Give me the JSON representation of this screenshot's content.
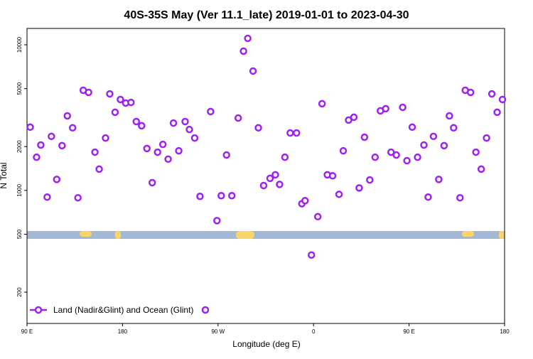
{
  "chart_data": {
    "type": "scatter",
    "title": "40S-35S May (Ver 11.1_late)   2019-01-01 to 2023-04-30",
    "xlabel": "Longitude (deg E)",
    "ylabel": "N Total",
    "xlim": [
      90,
      540
    ],
    "xticks": [
      {
        "value": 90,
        "label": "90 E"
      },
      180,
      {
        "value": 270,
        "label": "90 W"
      },
      {
        "value": 360,
        "label": "0"
      },
      {
        "value": 450,
        "label": "90 E"
      },
      {
        "value": 540,
        "label": "180"
      }
    ],
    "ylim": [
      122,
      12950
    ],
    "log_y": true,
    "yticks": [
      200,
      500,
      1000,
      2000,
      5000,
      10000
    ],
    "legend": "bottom-left",
    "series": [
      {
        "name": "Land (Nadir&Glint) and Ocean (Glint)",
        "color": "#a020f0",
        "x": [
          93,
          99,
          103,
          109,
          113,
          118,
          123,
          128,
          133,
          138,
          143,
          148,
          154,
          158,
          164,
          168,
          173,
          178,
          183,
          188,
          193,
          198,
          203,
          208,
          213,
          218,
          223,
          228,
          233,
          239,
          243,
          248,
          253,
          263,
          269,
          273,
          278,
          283,
          289,
          294,
          298,
          303,
          308,
          313,
          319,
          324,
          328,
          333,
          338,
          344,
          349,
          352,
          358,
          364,
          368,
          373,
          378,
          384,
          388,
          393,
          398,
          403,
          408,
          413,
          418,
          423,
          428,
          433,
          438,
          444,
          448,
          453,
          458,
          464,
          468,
          473,
          478,
          483,
          488,
          492,
          498,
          503,
          508,
          513,
          518,
          523,
          528,
          533,
          538
        ],
        "values": [
          2720,
          1690,
          2050,
          900,
          2350,
          1190,
          2030,
          3250,
          2690,
          890,
          4870,
          4710,
          1830,
          1400,
          2290,
          4600,
          3440,
          4210,
          3980,
          4020,
          2970,
          2780,
          1940,
          1130,
          1830,
          2070,
          1640,
          2900,
          1870,
          2970,
          2620,
          2290,
          910,
          3480,
          620,
          920,
          1750,
          920,
          3140,
          9040,
          11070,
          6600,
          2690,
          1080,
          1210,
          1280,
          1100,
          1690,
          2480,
          2480,
          810,
          850,
          360,
          660,
          3940,
          1280,
          1260,
          940,
          1870,
          3040,
          3180,
          1040,
          2320,
          1180,
          1690,
          3520,
          3640,
          1830,
          1750,
          3720,
          1600,
          2720,
          1690,
          2050,
          900,
          2350,
          1190,
          2030,
          3250,
          2690,
          890,
          4870,
          4710,
          1830,
          1400,
          2290,
          4600,
          3440,
          4210
        ]
      }
    ]
  }
}
